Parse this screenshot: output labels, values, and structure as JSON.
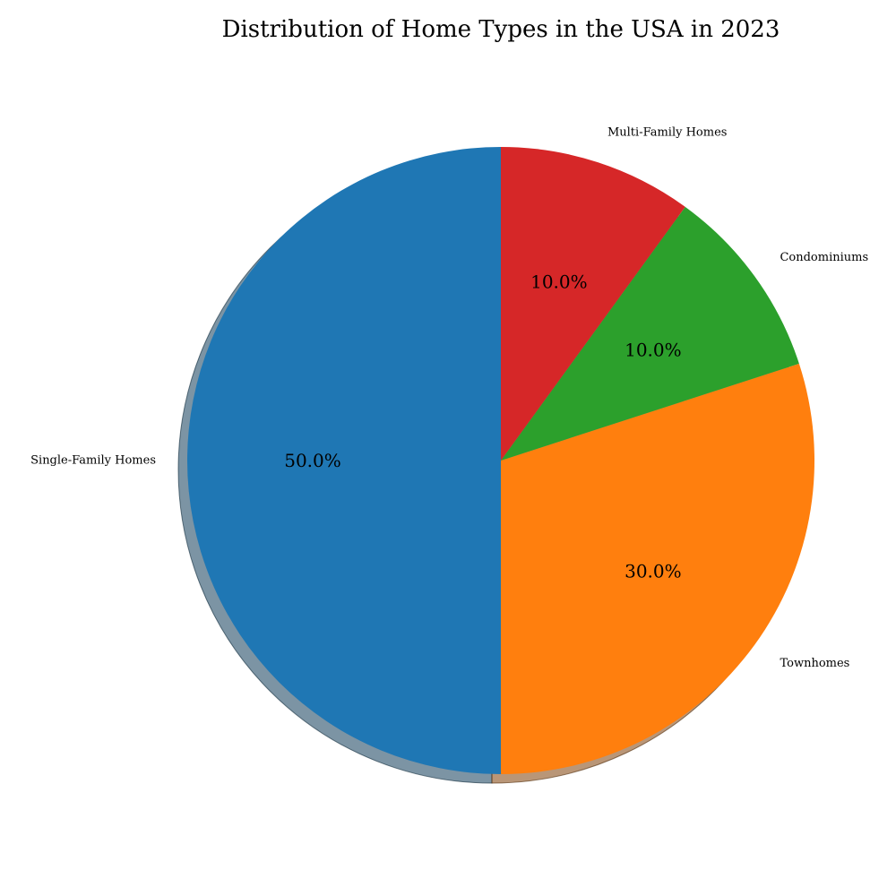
{
  "chart_data": {
    "type": "pie",
    "title": "Distribution of Home Types in the USA in 2023",
    "start_angle_deg": 90,
    "direction": "counterclockwise",
    "shadow": true,
    "slices": [
      {
        "label": "Single-Family Homes",
        "value": 50,
        "pct_label": "50.0%",
        "color": "#1f77b4"
      },
      {
        "label": "Townhomes",
        "value": 30,
        "pct_label": "30.0%",
        "color": "#ff7f0e"
      },
      {
        "label": "Condominiums",
        "value": 10,
        "pct_label": "10.0%",
        "color": "#2ca02c"
      },
      {
        "label": "Multi-Family Homes",
        "value": 10,
        "pct_label": "10.0%",
        "color": "#d62728"
      }
    ]
  }
}
